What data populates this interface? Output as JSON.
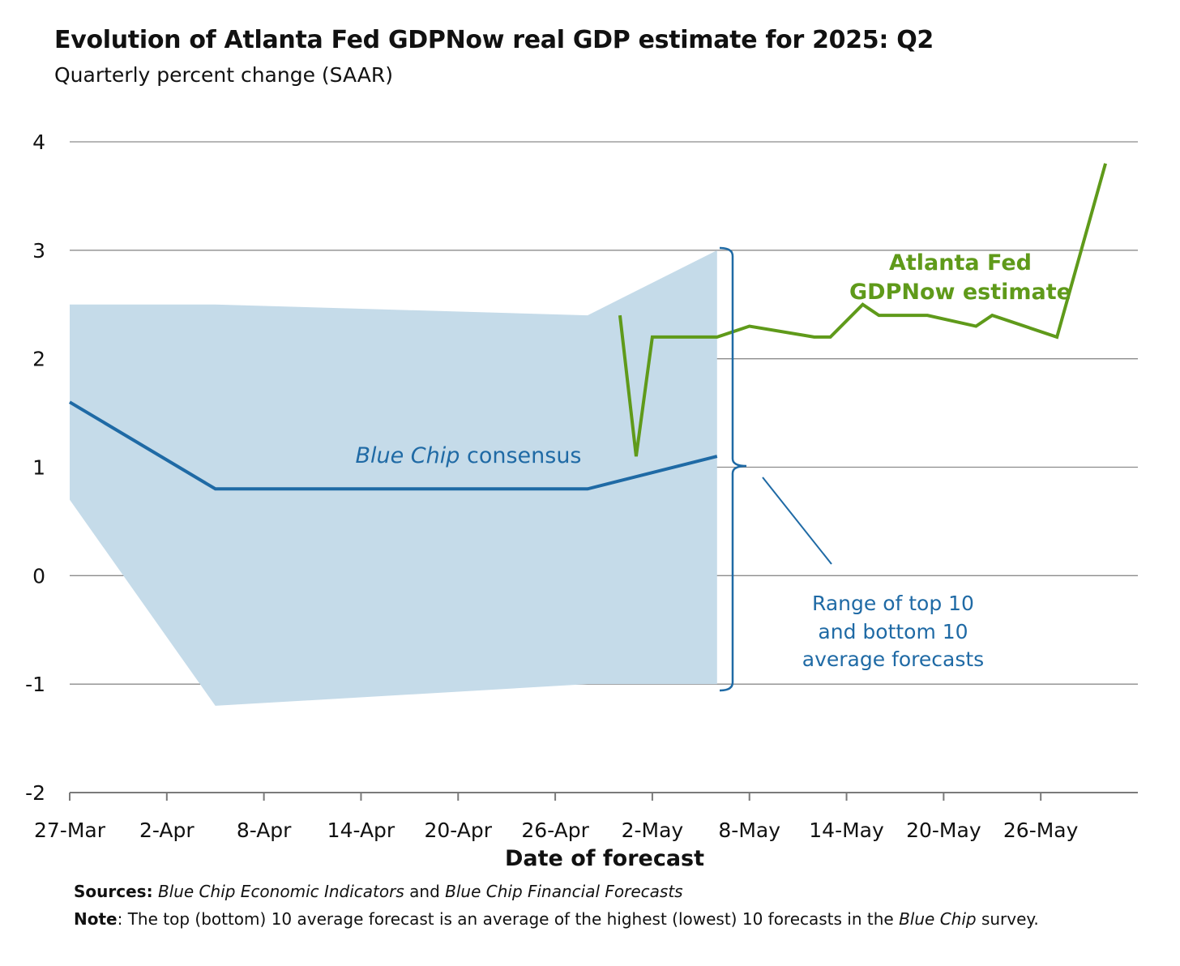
{
  "title": "Evolution of Atlanta Fed GDPNow real GDP estimate for 2025: Q2",
  "subtitle": "Quarterly percent change (SAAR)",
  "chart_data": {
    "type": "line",
    "xlabel": "Date of forecast",
    "ylabel": "",
    "ylim": [
      -2,
      4
    ],
    "yticks": [
      4,
      3,
      2,
      1,
      0,
      -1,
      -2
    ],
    "x_range": [
      "27-Mar",
      "1-Jun"
    ],
    "xtick_labels": [
      "27-Mar",
      "2-Apr",
      "8-Apr",
      "14-Apr",
      "20-Apr",
      "26-Apr",
      "2-May",
      "8-May",
      "14-May",
      "20-May",
      "26-May"
    ],
    "grid": true,
    "series": [
      {
        "name": "Blue Chip consensus",
        "color": "#1f6aa5",
        "points": [
          {
            "x": "27-Mar",
            "y": 1.6
          },
          {
            "x": "5-Apr",
            "y": 0.8
          },
          {
            "x": "28-Apr",
            "y": 0.8
          },
          {
            "x": "6-May",
            "y": 1.1
          }
        ]
      },
      {
        "name": "Atlanta Fed GDPNow estimate",
        "color": "#5f9a1a",
        "points": [
          {
            "x": "30-Apr",
            "y": 2.4
          },
          {
            "x": "1-May",
            "y": 1.1
          },
          {
            "x": "2-May",
            "y": 2.2
          },
          {
            "x": "6-May",
            "y": 2.2
          },
          {
            "x": "8-May",
            "y": 2.3
          },
          {
            "x": "12-May",
            "y": 2.2
          },
          {
            "x": "13-May",
            "y": 2.2
          },
          {
            "x": "15-May",
            "y": 2.5
          },
          {
            "x": "16-May",
            "y": 2.4
          },
          {
            "x": "19-May",
            "y": 2.4
          },
          {
            "x": "22-May",
            "y": 2.3
          },
          {
            "x": "23-May",
            "y": 2.4
          },
          {
            "x": "27-May",
            "y": 2.2
          },
          {
            "x": "30-May",
            "y": 3.8
          }
        ]
      }
    ],
    "range_band": {
      "name": "Range of top 10 and bottom 10 average forecasts",
      "color": "#c5dbe9",
      "upper": [
        {
          "x": "27-Mar",
          "y": 2.5
        },
        {
          "x": "5-Apr",
          "y": 2.5
        },
        {
          "x": "28-Apr",
          "y": 2.4
        },
        {
          "x": "6-May",
          "y": 3.0
        }
      ],
      "lower": [
        {
          "x": "27-Mar",
          "y": 0.7
        },
        {
          "x": "5-Apr",
          "y": -1.2
        },
        {
          "x": "28-Apr",
          "y": -1.0
        },
        {
          "x": "6-May",
          "y": -1.0
        }
      ]
    },
    "annotations": {
      "consensus_italic": "Blue Chip",
      "consensus_rest": " consensus",
      "gdpnow_line1": "Atlanta Fed",
      "gdpnow_line2": "GDPNow estimate",
      "range_line1": "Range of top 10",
      "range_line2": "and bottom 10",
      "range_line3": "average forecasts"
    }
  },
  "footer": {
    "sources_label": "Sources:",
    "sources_title1": "Blue Chip Economic Indicators",
    "sources_and": " and ",
    "sources_title2": "Blue Chip Financial Forecasts",
    "note_label": "Note",
    "note_text1": ": The top (bottom) 10 average forecast is an average of the highest (lowest) 10 forecasts in the ",
    "note_italic": "Blue Chip",
    "note_text2": " survey."
  }
}
